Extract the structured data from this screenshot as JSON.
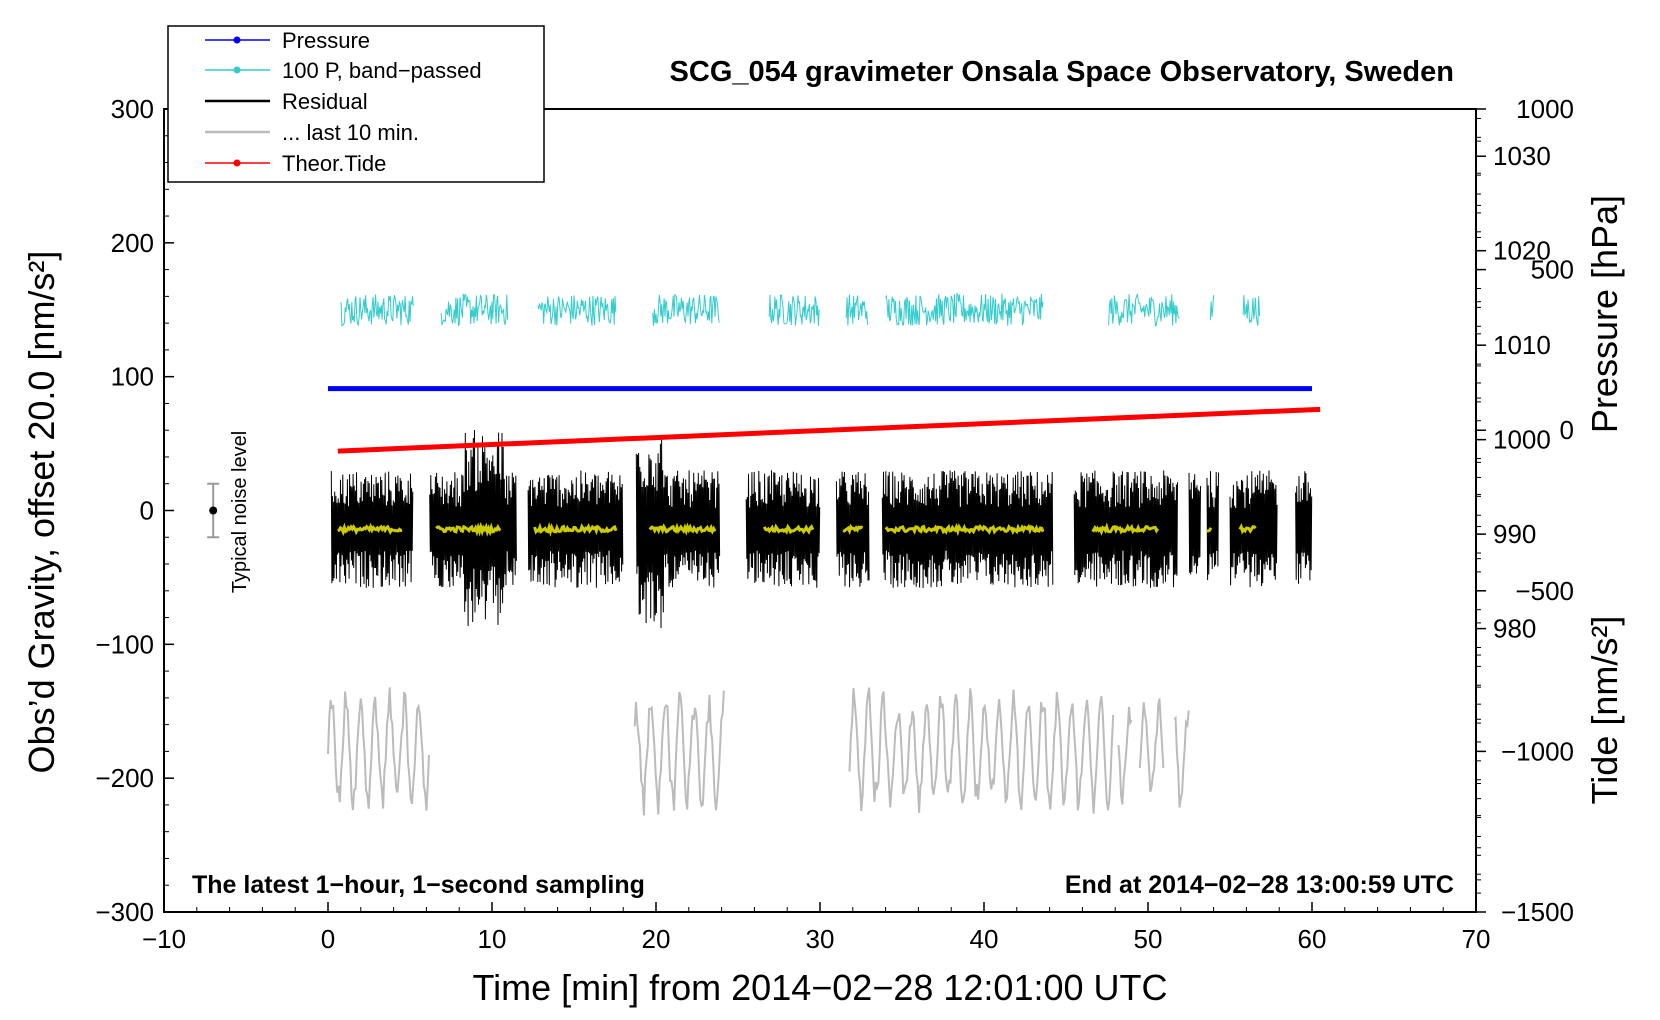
{
  "chart_data": {
    "type": "line",
    "title": "SCG_054 gravimeter Onsala Space Observatory, Sweden",
    "xlabel": "Time [min] from 2014−02−28 12:01:00 UTC",
    "ylabel": "Obs’d Gravity, offset 20.0 [nm/s²]",
    "ylabel_right_pressure": "Pressure [hPa]",
    "ylabel_right_tide": "Tide [nm/s²]",
    "xlim": [
      -10,
      70
    ],
    "ylim": [
      -300,
      300
    ],
    "x_ticks": [
      "−10",
      "0",
      "10",
      "20",
      "30",
      "40",
      "50",
      "60",
      "70"
    ],
    "y_ticks": [
      "300",
      "200",
      "100",
      "0",
      "−100",
      "−200",
      "−300"
    ],
    "pressure_ticks": [
      "1030",
      "1020",
      "1010",
      "1000",
      "990",
      "980"
    ],
    "tide_ticks": [
      "1000",
      "500",
      "0",
      "−500",
      "−1000",
      "−1500"
    ],
    "pressure_axis": {
      "range": [
        950,
        1035
      ],
      "visible_ticks": [
        980,
        990,
        1000,
        1010,
        1020,
        1030
      ]
    },
    "tide_axis": {
      "range": [
        -1500,
        1000
      ]
    },
    "legend": {
      "placement": "top-left",
      "entries": [
        "Pressure",
        "100 P, band−passed",
        "Residual",
        "... last 10 min.",
        "Theor.Tide"
      ]
    },
    "note_left": "The latest 1−hour, 1−second sampling",
    "note_right": "End at 2014−02−28 13:00:59 UTC",
    "noise_label": "Typical noise level",
    "noise_level": {
      "x": -7,
      "center": 0,
      "half_range": 20
    },
    "series": [
      {
        "name": "Pressure",
        "color": "#0000ff",
        "x": [
          0,
          60
        ],
        "values": [
          1005.4,
          1005.4
        ],
        "axis": "pressure"
      },
      {
        "name": "100 P, band−passed",
        "color": "#33cccc",
        "baseline": 150,
        "amplitude": 12,
        "axis": "gravity",
        "segments": [
          [
            0.8,
            5.2
          ],
          [
            6.9,
            11.0
          ],
          [
            12.8,
            17.6
          ],
          [
            19.8,
            23.9
          ],
          [
            26.9,
            30.0
          ],
          [
            31.6,
            32.9
          ],
          [
            34.0,
            43.6
          ],
          [
            47.6,
            51.9
          ],
          [
            53.8,
            54.0
          ],
          [
            55.8,
            56.8
          ]
        ]
      },
      {
        "name": "Residual",
        "color": "#000000",
        "axis": "gravity",
        "envelope_min": [
          -60,
          60
        ],
        "peaks": [
          90,
          -115,
          72,
          -105
        ],
        "segments": [
          [
            0.2,
            5.2
          ],
          [
            6.2,
            11.5
          ],
          [
            12.2,
            18.0
          ],
          [
            18.8,
            23.9
          ],
          [
            25.5,
            30.0
          ],
          [
            31.0,
            33.0
          ],
          [
            33.8,
            44.2
          ],
          [
            45.5,
            51.8
          ],
          [
            52.5,
            53.2
          ],
          [
            53.6,
            54.3
          ],
          [
            55.0,
            57.9
          ],
          [
            59.0,
            60.0
          ]
        ]
      },
      {
        "name": "... last 10 min.",
        "color": "#bbbbbb",
        "axis": "gravity",
        "baseline": -180,
        "amplitude": 40,
        "segments": [
          [
            0.0,
            6.2
          ],
          [
            18.7,
            24.2
          ],
          [
            31.8,
            47.9
          ],
          [
            48.2,
            49.0
          ],
          [
            49.5,
            51.0
          ],
          [
            51.6,
            52.5
          ]
        ]
      },
      {
        "name": "Theor.Tide",
        "color": "#ff0000",
        "axis": "tide",
        "x": [
          0.6,
          60.5
        ],
        "values": [
          -65,
          65
        ]
      }
    ],
    "yellow_trend": {
      "color": "#cccc00",
      "value": -14,
      "segments": [
        [
          0.6,
          4.6
        ],
        [
          6.6,
          10.6
        ],
        [
          12.6,
          17.6
        ],
        [
          19.6,
          23.6
        ],
        [
          26.6,
          29.6
        ],
        [
          31.4,
          32.6
        ],
        [
          34.0,
          43.6
        ],
        [
          46.6,
          50.6
        ],
        [
          53.6,
          53.9
        ],
        [
          55.6,
          56.6
        ]
      ]
    }
  }
}
